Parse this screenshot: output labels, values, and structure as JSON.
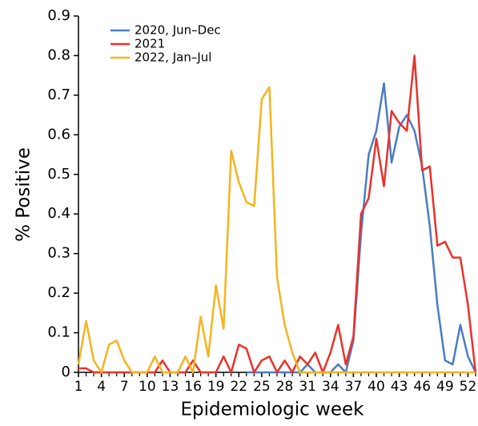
{
  "chart_data": {
    "type": "line",
    "x_label": "Epidemiologic week",
    "y_label": "% Positive",
    "x": [
      1,
      2,
      3,
      4,
      5,
      6,
      7,
      8,
      9,
      10,
      11,
      12,
      13,
      14,
      15,
      16,
      17,
      18,
      19,
      20,
      21,
      22,
      23,
      24,
      25,
      26,
      27,
      28,
      29,
      30,
      31,
      32,
      33,
      34,
      35,
      36,
      37,
      38,
      39,
      40,
      41,
      42,
      43,
      44,
      45,
      46,
      47,
      48,
      49,
      50,
      51,
      52,
      53
    ],
    "xlim": [
      1,
      53
    ],
    "xticks": [
      1,
      4,
      7,
      10,
      13,
      16,
      19,
      22,
      25,
      28,
      31,
      34,
      37,
      40,
      43,
      46,
      49,
      52
    ],
    "ylim": [
      0,
      0.9
    ],
    "yticks": [
      0,
      0.1,
      0.2,
      0.3,
      0.4,
      0.5,
      0.6,
      0.7,
      0.8,
      0.9
    ],
    "legend": "upper left",
    "series": [
      {
        "name": "2020, Jun–Dec",
        "color": "#4a7cc4",
        "values": [
          null,
          null,
          null,
          null,
          null,
          null,
          null,
          null,
          null,
          null,
          null,
          null,
          null,
          null,
          null,
          null,
          null,
          null,
          null,
          null,
          null,
          null,
          0,
          0,
          0,
          0,
          0,
          0,
          0,
          0,
          0.02,
          0,
          0,
          0,
          0.02,
          0,
          0.08,
          0.35,
          0.55,
          0.61,
          0.73,
          0.53,
          0.62,
          0.65,
          0.61,
          0.52,
          0.37,
          0.17,
          0.03,
          0.02,
          0.12,
          0.04,
          0
        ]
      },
      {
        "name": "2021",
        "color": "#e8322b",
        "values": [
          0.01,
          0.01,
          0,
          0,
          0,
          0,
          0,
          0,
          0,
          0,
          0,
          0.03,
          0,
          0,
          0,
          0.03,
          0,
          0,
          0,
          0.04,
          0,
          0.07,
          0.06,
          0,
          0.03,
          0.04,
          0,
          0.03,
          0,
          0.04,
          0.02,
          0.05,
          0,
          0.05,
          0.12,
          0.02,
          0.09,
          0.4,
          0.44,
          0.59,
          0.47,
          0.66,
          0.63,
          0.61,
          0.8,
          0.51,
          0.52,
          0.32,
          0.33,
          0.29,
          0.29,
          0.17,
          0
        ]
      },
      {
        "name": "2022, Jan–Jul",
        "color": "#f5b31f",
        "values": [
          0.02,
          0.13,
          0.03,
          0,
          0.07,
          0.08,
          0.03,
          0,
          0,
          0,
          0.04,
          0,
          0,
          0,
          0.04,
          0,
          0.14,
          0.04,
          0.22,
          0.11,
          0.56,
          0.48,
          0.43,
          0.42,
          0.69,
          0.72,
          0.24,
          0.12,
          0.05,
          0,
          0,
          0,
          0,
          0,
          0,
          0,
          0,
          0,
          0,
          0,
          0,
          0,
          0,
          0,
          0,
          0,
          0,
          0,
          0,
          0,
          0,
          0,
          0
        ]
      }
    ]
  }
}
